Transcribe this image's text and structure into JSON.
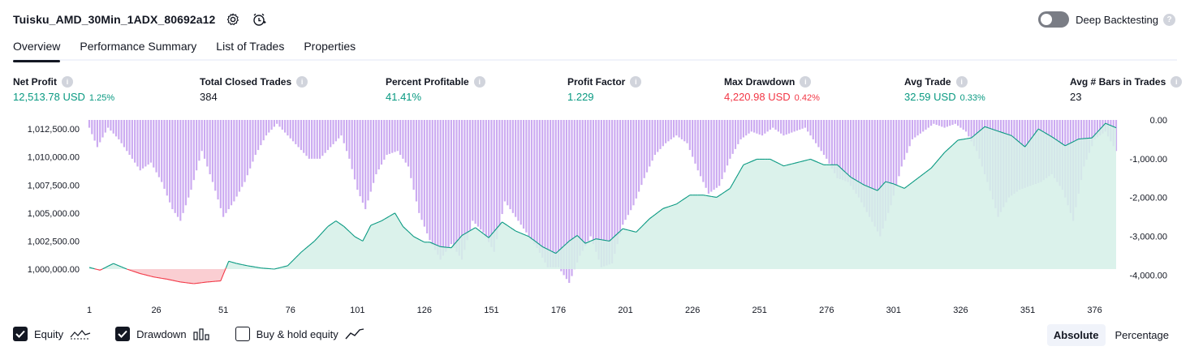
{
  "header": {
    "strategy_name": "Tuisku_AMD_30Min_1ADX_80692a12",
    "deep_backtesting_label": "Deep Backtesting",
    "deep_backtesting_enabled": false
  },
  "tabs": [
    {
      "label": "Overview",
      "active": true
    },
    {
      "label": "Performance Summary",
      "active": false
    },
    {
      "label": "List of Trades",
      "active": false
    },
    {
      "label": "Properties",
      "active": false
    }
  ],
  "metrics": {
    "net_profit": {
      "label": "Net Profit",
      "value": "12,513.78 USD",
      "sub": "1.25%",
      "tone": "pos"
    },
    "total_closed_trades": {
      "label": "Total Closed Trades",
      "value": "384",
      "sub": "",
      "tone": "neutral"
    },
    "percent_profitable": {
      "label": "Percent Profitable",
      "value": "41.41%",
      "sub": "",
      "tone": "pos"
    },
    "profit_factor": {
      "label": "Profit Factor",
      "value": "1.229",
      "sub": "",
      "tone": "pos"
    },
    "max_drawdown": {
      "label": "Max Drawdown",
      "value": "4,220.98 USD",
      "sub": "0.42%",
      "tone": "neg"
    },
    "avg_trade": {
      "label": "Avg Trade",
      "value": "32.59 USD",
      "sub": "0.33%",
      "tone": "pos"
    },
    "avg_bars": {
      "label": "Avg # Bars in Trades",
      "value": "23",
      "sub": "",
      "tone": "neutral"
    }
  },
  "legend": {
    "equity_label": "Equity",
    "equity_checked": true,
    "drawdown_label": "Drawdown",
    "drawdown_checked": true,
    "buyhold_label": "Buy & hold equity",
    "buyhold_checked": false
  },
  "mode": {
    "absolute_label": "Absolute",
    "percentage_label": "Percentage",
    "active": "absolute"
  },
  "colors": {
    "equity_line": "#089981",
    "equity_fill": "#d5f0e8",
    "equity_neg_line": "#f23645",
    "equity_neg_fill": "#f9c9cd",
    "drawdown_bar": "#c9a6f0",
    "drawdown_bar_overlap": "#a8a8ea"
  },
  "chart_data": {
    "type": "area",
    "x_ticks": [
      "1",
      "26",
      "51",
      "76",
      "101",
      "126",
      "151",
      "176",
      "201",
      "226",
      "251",
      "276",
      "301",
      "326",
      "351",
      "376"
    ],
    "xlim": [
      1,
      384
    ],
    "left_axis": {
      "ticks": [
        "1,012,500.00",
        "1,010,000.00",
        "1,007,500.00",
        "1,005,000.00",
        "1,002,500.00",
        "1,000,000.00"
      ],
      "ylim": [
        998700,
        1013300
      ],
      "baseline": 1000000
    },
    "right_axis": {
      "ticks": [
        "0.00",
        "-1,000.00",
        "-2,000.00",
        "-3,000.00",
        "-4,000.00"
      ],
      "ylim": [
        -4220.98,
        0
      ]
    },
    "series": [
      {
        "kind": "equity",
        "x": [
          1,
          5,
          10,
          15,
          20,
          25,
          30,
          35,
          40,
          45,
          50,
          53,
          56,
          60,
          65,
          70,
          75,
          80,
          85,
          90,
          93,
          96,
          100,
          103,
          106,
          110,
          115,
          118,
          122,
          126,
          128,
          132,
          136,
          140,
          145,
          150,
          155,
          160,
          165,
          170,
          175,
          180,
          183,
          186,
          190,
          195,
          200,
          205,
          210,
          215,
          220,
          225,
          230,
          235,
          240,
          245,
          250,
          255,
          260,
          265,
          270,
          275,
          280,
          285,
          290,
          295,
          298,
          301,
          305,
          310,
          315,
          320,
          325,
          330,
          335,
          340,
          345,
          350,
          355,
          360,
          365,
          370,
          375,
          380,
          384
        ],
        "y": [
          1000150,
          999900,
          1000500,
          1000000,
          999600,
          999300,
          999100,
          998850,
          998700,
          998850,
          998950,
          1000700,
          1000500,
          1000300,
          1000100,
          1000000,
          1000300,
          1001500,
          1002500,
          1003800,
          1004300,
          1003800,
          1002900,
          1002500,
          1003900,
          1004300,
          1005000,
          1003800,
          1002900,
          1002400,
          1002400,
          1002000,
          1001900,
          1003000,
          1003700,
          1002800,
          1004200,
          1003400,
          1002900,
          1002000,
          1001400,
          1002500,
          1003000,
          1002300,
          1002700,
          1002500,
          1003600,
          1003300,
          1004500,
          1005400,
          1005800,
          1006600,
          1006600,
          1006400,
          1007200,
          1009300,
          1009800,
          1009800,
          1009200,
          1009500,
          1009800,
          1009300,
          1009300,
          1008200,
          1007500,
          1007000,
          1007800,
          1007600,
          1007200,
          1008100,
          1009000,
          1010400,
          1011500,
          1011700,
          1012700,
          1012300,
          1011900,
          1010900,
          1012500,
          1011800,
          1011000,
          1011600,
          1011700,
          1013000,
          1012600
        ]
      },
      {
        "kind": "drawdown",
        "x": [
          1,
          4,
          8,
          12,
          16,
          20,
          24,
          28,
          32,
          35,
          39,
          43,
          47,
          51,
          55,
          59,
          63,
          67,
          71,
          75,
          79,
          83,
          87,
          91,
          95,
          98,
          101,
          104,
          108,
          112,
          116,
          120,
          124,
          128,
          132,
          136,
          140,
          144,
          148,
          152,
          156,
          160,
          164,
          168,
          172,
          176,
          180,
          184,
          188,
          192,
          196,
          200,
          204,
          208,
          212,
          216,
          220,
          224,
          228,
          232,
          236,
          240,
          244,
          248,
          252,
          256,
          260,
          264,
          268,
          272,
          276,
          280,
          284,
          288,
          292,
          296,
          300,
          304,
          308,
          312,
          316,
          320,
          324,
          328,
          332,
          336,
          340,
          344,
          348,
          352,
          356,
          360,
          364,
          368,
          372,
          376,
          380,
          384
        ],
        "y": [
          -200,
          -700,
          -200,
          -500,
          -900,
          -1300,
          -1100,
          -1600,
          -2300,
          -2600,
          -1800,
          -800,
          -1600,
          -2500,
          -2100,
          -1600,
          -900,
          -400,
          -100,
          -400,
          -700,
          -1000,
          -1000,
          -700,
          -400,
          -1000,
          -1800,
          -2300,
          -1400,
          -900,
          -800,
          -1200,
          -2400,
          -3100,
          -3600,
          -3200,
          -3600,
          -2600,
          -2900,
          -3400,
          -2100,
          -2500,
          -2900,
          -3300,
          -3800,
          -3800,
          -4200,
          -3500,
          -3000,
          -3800,
          -3700,
          -2700,
          -2200,
          -1500,
          -900,
          -600,
          -400,
          -600,
          -1300,
          -1900,
          -1700,
          -1000,
          -500,
          -300,
          -400,
          -200,
          -400,
          -300,
          -200,
          -600,
          -1000,
          -1500,
          -1600,
          -2000,
          -2500,
          -3000,
          -2200,
          -1200,
          -500,
          -300,
          -100,
          -200,
          -100,
          -300,
          -800,
          -1600,
          -2500,
          -2000,
          -1800,
          -1700,
          -1600,
          -1400,
          -1800,
          -2600,
          -1200,
          -500,
          -300,
          -800
        ]
      }
    ]
  }
}
